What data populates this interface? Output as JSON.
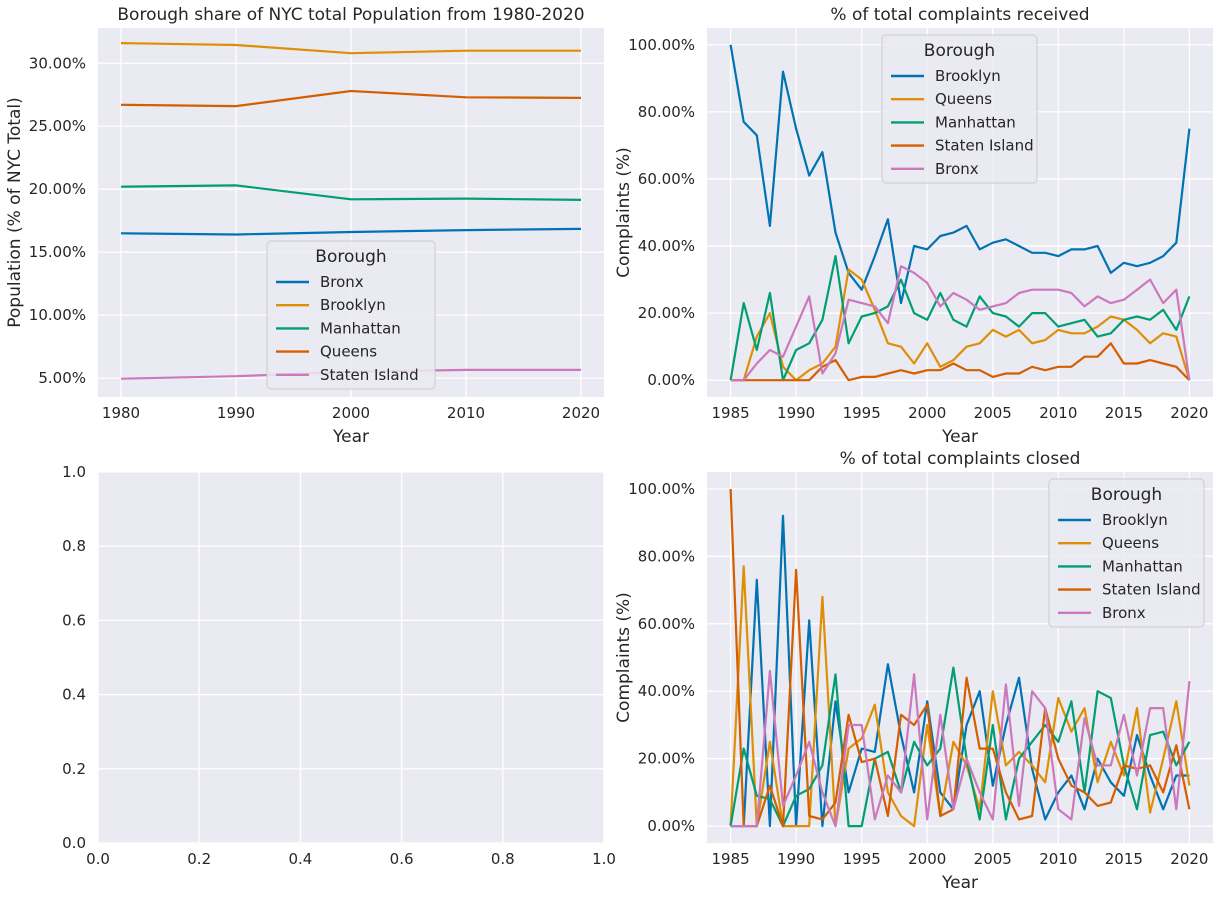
{
  "chart_data": [
    {
      "type": "line",
      "title": "Borough share of NYC total Population from 1980-2020",
      "xlabel": "Year",
      "ylabel": "Population (% of NYC Total)",
      "xlim": [
        1978,
        2022
      ],
      "ylim": [
        3.5,
        32.8
      ],
      "xticks": [
        1980,
        1990,
        2000,
        2010,
        2020
      ],
      "xtick_labels": [
        "1980",
        "1990",
        "2000",
        "2010",
        "2020"
      ],
      "yticks": [
        5,
        10,
        15,
        20,
        25,
        30
      ],
      "ytick_labels": [
        "5.00%",
        "10.00%",
        "15.00%",
        "20.00%",
        "25.00%",
        "30.00%"
      ],
      "grid": true,
      "legend": {
        "title": "Borough",
        "placement": "lower-center"
      },
      "x": [
        1980,
        1990,
        2000,
        2010,
        2020
      ],
      "series": [
        {
          "name": "Bronx",
          "color": "#0173b2",
          "values": [
            16.5,
            16.4,
            16.6,
            16.75,
            16.85
          ]
        },
        {
          "name": "Brooklyn",
          "color": "#de8f05",
          "values": [
            31.6,
            31.45,
            30.8,
            31.0,
            31.0
          ]
        },
        {
          "name": "Manhattan",
          "color": "#029e73",
          "values": [
            20.2,
            20.3,
            19.2,
            19.25,
            19.15
          ]
        },
        {
          "name": "Queens",
          "color": "#d55e00",
          "values": [
            26.7,
            26.6,
            27.8,
            27.3,
            27.25
          ]
        },
        {
          "name": "Staten Island",
          "color": "#cc78bc",
          "values": [
            4.95,
            5.15,
            5.5,
            5.65,
            5.65
          ]
        }
      ]
    },
    {
      "type": "line",
      "title": "% of total complaints received",
      "xlabel": "Year",
      "ylabel": "Complaints (%)",
      "xlim": [
        1983.2,
        2021.8
      ],
      "ylim": [
        -5,
        105
      ],
      "xticks": [
        1985,
        1990,
        1995,
        2000,
        2005,
        2010,
        2015,
        2020
      ],
      "xtick_labels": [
        "1985",
        "1990",
        "1995",
        "2000",
        "2005",
        "2010",
        "2015",
        "2020"
      ],
      "yticks": [
        0,
        20,
        40,
        60,
        80,
        100
      ],
      "ytick_labels": [
        "0.00%",
        "20.00%",
        "40.00%",
        "60.00%",
        "80.00%",
        "100.00%"
      ],
      "grid": true,
      "legend": {
        "title": "Borough",
        "placement": "upper-center"
      },
      "x": [
        1985,
        1986,
        1987,
        1988,
        1989,
        1990,
        1991,
        1992,
        1993,
        1994,
        1995,
        1996,
        1997,
        1998,
        1999,
        2000,
        2001,
        2002,
        2003,
        2004,
        2005,
        2006,
        2007,
        2008,
        2009,
        2010,
        2011,
        2012,
        2013,
        2014,
        2015,
        2016,
        2017,
        2018,
        2019,
        2020
      ],
      "series": [
        {
          "name": "Brooklyn",
          "color": "#0173b2",
          "values": [
            100,
            77,
            73,
            46,
            92,
            75,
            61,
            68,
            44,
            32,
            27,
            37,
            48,
            23,
            40,
            39,
            43,
            44,
            46,
            39,
            41,
            42,
            40,
            38,
            38,
            37,
            39,
            39,
            40,
            32,
            35,
            34,
            35,
            37,
            41,
            75
          ]
        },
        {
          "name": "Queens",
          "color": "#de8f05",
          "values": [
            0,
            0,
            13,
            20,
            4,
            0,
            3,
            5,
            10,
            33,
            30,
            21,
            11,
            10,
            5,
            11,
            4,
            6,
            10,
            11,
            15,
            13,
            15,
            11,
            12,
            15,
            14,
            14,
            16,
            19,
            18,
            15,
            11,
            14,
            13,
            0
          ]
        },
        {
          "name": "Manhattan",
          "color": "#029e73",
          "values": [
            0,
            23,
            9,
            26,
            0,
            9,
            11,
            18,
            37,
            11,
            19,
            20,
            22,
            30,
            20,
            18,
            26,
            18,
            16,
            25,
            20,
            19,
            16,
            20,
            20,
            16,
            17,
            18,
            13,
            14,
            18,
            19,
            18,
            21,
            15,
            25
          ]
        },
        {
          "name": "Staten Island",
          "color": "#d55e00",
          "values": [
            0,
            0,
            0,
            0,
            0,
            0,
            0,
            4,
            6,
            0,
            1,
            1,
            2,
            3,
            2,
            3,
            3,
            5,
            3,
            3,
            1,
            2,
            2,
            4,
            3,
            4,
            4,
            7,
            7,
            11,
            5,
            5,
            6,
            5,
            4,
            0
          ]
        },
        {
          "name": "Bronx",
          "color": "#cc78bc",
          "values": [
            0,
            0,
            5,
            9,
            7,
            16,
            25,
            2,
            8,
            24,
            23,
            22,
            17,
            34,
            32,
            29,
            22,
            26,
            24,
            21,
            22,
            23,
            26,
            27,
            27,
            27,
            26,
            22,
            25,
            23,
            24,
            27,
            30,
            23,
            27,
            0
          ]
        }
      ]
    },
    {
      "type": "line",
      "title": "",
      "xlabel": "",
      "ylabel": "",
      "xlim": [
        0,
        1
      ],
      "ylim": [
        0,
        1
      ],
      "xticks": [
        0,
        0.2,
        0.4,
        0.6,
        0.8,
        1.0
      ],
      "xtick_labels": [
        "0.0",
        "0.2",
        "0.4",
        "0.6",
        "0.8",
        "1.0"
      ],
      "yticks": [
        0,
        0.2,
        0.4,
        0.6,
        0.8,
        1.0
      ],
      "ytick_labels": [
        "0.0",
        "0.2",
        "0.4",
        "0.6",
        "0.8",
        "1.0"
      ],
      "grid": true,
      "x": [],
      "series": []
    },
    {
      "type": "line",
      "title": "% of total complaints closed",
      "xlabel": "Year",
      "ylabel": "Complaints (%)",
      "xlim": [
        1983.2,
        2021.8
      ],
      "ylim": [
        -5,
        105
      ],
      "xticks": [
        1985,
        1990,
        1995,
        2000,
        2005,
        2010,
        2015,
        2020
      ],
      "xtick_labels": [
        "1985",
        "1990",
        "1995",
        "2000",
        "2005",
        "2010",
        "2015",
        "2020"
      ],
      "yticks": [
        0,
        20,
        40,
        60,
        80,
        100
      ],
      "ytick_labels": [
        "0.00%",
        "20.00%",
        "40.00%",
        "60.00%",
        "80.00%",
        "100.00%"
      ],
      "grid": true,
      "legend": {
        "title": "Borough",
        "placement": "upper-right"
      },
      "x": [
        1985,
        1986,
        1987,
        1988,
        1989,
        1990,
        1991,
        1992,
        1993,
        1994,
        1995,
        1996,
        1997,
        1998,
        1999,
        2000,
        2001,
        2002,
        2003,
        2004,
        2005,
        2006,
        2007,
        2008,
        2009,
        2010,
        2011,
        2012,
        2013,
        2014,
        2015,
        2016,
        2017,
        2018,
        2019,
        2020
      ],
      "series": [
        {
          "name": "Brooklyn",
          "color": "#0173b2",
          "values": [
            0,
            0,
            73,
            0,
            92,
            0,
            61,
            0,
            37,
            10,
            23,
            22,
            48,
            27,
            10,
            37,
            10,
            5,
            30,
            40,
            12,
            30,
            44,
            17,
            2,
            10,
            15,
            5,
            20,
            13,
            9,
            27,
            15,
            5,
            15,
            15
          ]
        },
        {
          "name": "Queens",
          "color": "#de8f05",
          "values": [
            0,
            77,
            0,
            25,
            0,
            0,
            0,
            68,
            0,
            23,
            26,
            36,
            10,
            3,
            0,
            30,
            3,
            25,
            18,
            5,
            40,
            18,
            22,
            18,
            13,
            38,
            28,
            35,
            13,
            25,
            15,
            35,
            4,
            20,
            37,
            12
          ]
        },
        {
          "name": "Manhattan",
          "color": "#029e73",
          "values": [
            0,
            23,
            9,
            8,
            0,
            9,
            11,
            18,
            45,
            0,
            0,
            20,
            22,
            10,
            25,
            18,
            23,
            47,
            20,
            2,
            30,
            2,
            20,
            25,
            30,
            25,
            37,
            10,
            40,
            38,
            18,
            5,
            27,
            28,
            18,
            25
          ]
        },
        {
          "name": "Staten Island",
          "color": "#d55e00",
          "values": [
            100,
            0,
            0,
            12,
            0,
            76,
            3,
            2,
            7,
            33,
            19,
            20,
            3,
            33,
            30,
            36,
            3,
            5,
            44,
            23,
            23,
            10,
            2,
            3,
            35,
            20,
            12,
            10,
            6,
            7,
            18,
            17,
            18,
            10,
            24,
            5
          ]
        },
        {
          "name": "Bronx",
          "color": "#cc78bc",
          "values": [
            0,
            0,
            0,
            46,
            6,
            15,
            25,
            10,
            0,
            30,
            30,
            2,
            15,
            10,
            45,
            2,
            33,
            5,
            20,
            10,
            2,
            42,
            6,
            40,
            35,
            5,
            2,
            32,
            18,
            18,
            33,
            15,
            35,
            35,
            5,
            43
          ]
        }
      ]
    }
  ]
}
